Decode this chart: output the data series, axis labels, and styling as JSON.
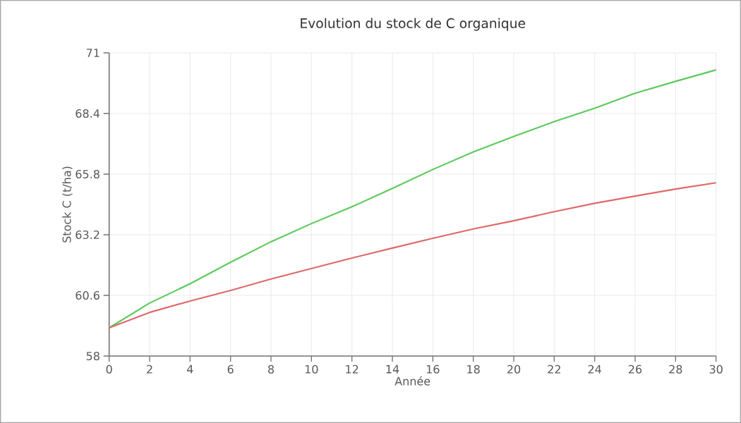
{
  "chart_data": {
    "type": "line",
    "title": "Evolution du stock de C organique",
    "xlabel": "Année",
    "ylabel": "Stock C (t/ha)",
    "x": [
      0,
      2,
      4,
      6,
      8,
      10,
      12,
      14,
      16,
      18,
      20,
      22,
      24,
      26,
      28,
      30
    ],
    "series": [
      {
        "color": "#5cc95c",
        "values": [
          59.21,
          60.27,
          61.1,
          62.02,
          62.9,
          63.68,
          64.4,
          65.19,
          66.0,
          66.75,
          67.42,
          68.05,
          68.63,
          69.27,
          69.78,
          70.27
        ]
      },
      {
        "color": "#e06868",
        "values": [
          59.21,
          59.87,
          60.36,
          60.81,
          61.3,
          61.75,
          62.2,
          62.63,
          63.05,
          63.45,
          63.8,
          64.19,
          64.55,
          64.86,
          65.16,
          65.43
        ]
      }
    ],
    "xlim": [
      0,
      30
    ],
    "ylim": [
      58,
      71
    ],
    "xticks": [
      0,
      2,
      4,
      6,
      8,
      10,
      12,
      14,
      16,
      18,
      20,
      22,
      24,
      26,
      28,
      30
    ],
    "yticks": [
      58,
      60.6,
      63.2,
      65.8,
      68.4,
      71
    ],
    "grid": true,
    "legend": false,
    "marker": "none",
    "line_style": "solid"
  }
}
